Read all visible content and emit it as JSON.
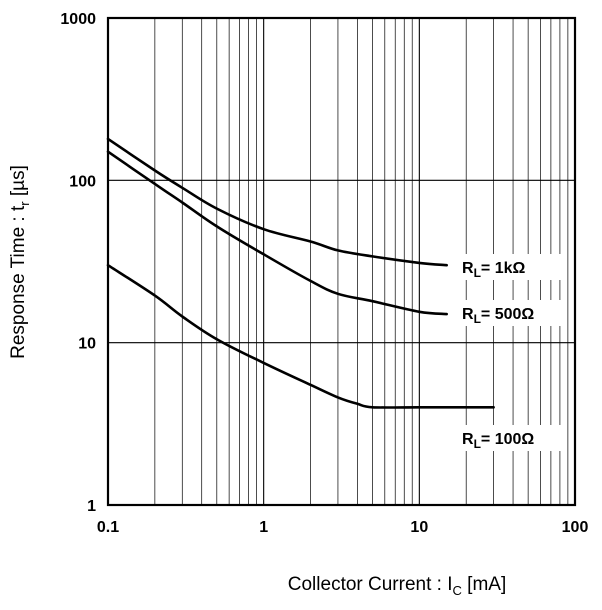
{
  "chart_data": {
    "type": "line",
    "title": "",
    "xlabel": {
      "main": "Collector Current : I",
      "sub": "C",
      "unit": " [mA]"
    },
    "ylabel": {
      "main": "Response Time : t",
      "sub": "r",
      "unit": " [µs]"
    },
    "x_scale": "log",
    "y_scale": "log",
    "xlim": [
      0.1,
      100
    ],
    "ylim": [
      1,
      1000
    ],
    "x_ticks": [
      {
        "value": 0.1,
        "label": "0.1"
      },
      {
        "value": 1,
        "label": "1"
      },
      {
        "value": 10,
        "label": "10"
      },
      {
        "value": 100,
        "label": "100"
      }
    ],
    "y_ticks": [
      {
        "value": 1,
        "label": "1"
      },
      {
        "value": 10,
        "label": "10"
      },
      {
        "value": 100,
        "label": "100"
      },
      {
        "value": 1000,
        "label": "1000"
      }
    ],
    "grid": true,
    "series": [
      {
        "name": "RL=1kΩ",
        "label": {
          "main": "R",
          "sub": "L",
          "rest": "= 1kΩ"
        },
        "color": "#000000",
        "x": [
          0.1,
          0.2,
          0.3,
          0.5,
          1,
          2,
          3,
          5,
          10,
          15
        ],
        "y": [
          180,
          115,
          90,
          67,
          50,
          42,
          37,
          34,
          31,
          30
        ]
      },
      {
        "name": "RL=500Ω",
        "label": {
          "main": "R",
          "sub": "L",
          "rest": "= 500Ω"
        },
        "color": "#000000",
        "x": [
          0.1,
          0.2,
          0.3,
          0.5,
          1,
          2,
          3,
          5,
          10,
          15
        ],
        "y": [
          150,
          95,
          73,
          52,
          35,
          24,
          20,
          18,
          15.5,
          15
        ]
      },
      {
        "name": "RL=100Ω",
        "label": {
          "main": "R",
          "sub": "L",
          "rest": "= 100Ω"
        },
        "color": "#000000",
        "x": [
          0.1,
          0.2,
          0.3,
          0.5,
          1,
          2,
          3,
          4,
          5,
          10,
          20,
          30
        ],
        "y": [
          30,
          19.5,
          14.5,
          10.5,
          7.5,
          5.5,
          4.6,
          4.2,
          4.0,
          4.0,
          4.0,
          4.0
        ]
      }
    ]
  }
}
